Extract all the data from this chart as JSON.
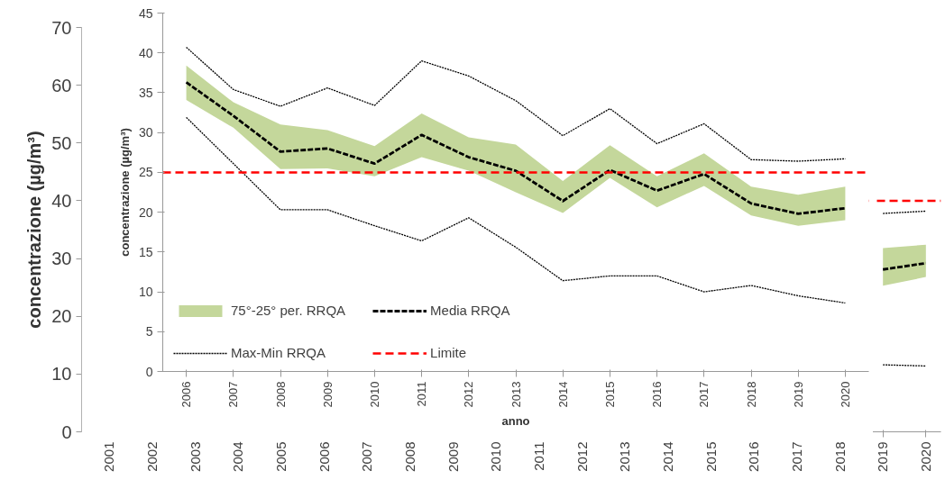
{
  "chart_data": [
    {
      "type": "line",
      "ylabel": "concentrazione (µg/m³)",
      "categories": [
        "2001",
        "2002",
        "2003",
        "2004",
        "2005",
        "2006",
        "2007",
        "2008",
        "2009",
        "2010",
        "2011",
        "2012",
        "2013",
        "2014",
        "2015",
        "2016",
        "2017",
        "2018",
        "2019",
        "2020"
      ],
      "ylim": [
        0,
        70
      ],
      "yticks": [
        0,
        10,
        20,
        30,
        40,
        50,
        60,
        70
      ],
      "grid": false,
      "legend": false,
      "series": [
        {
          "color": "#c4d79b",
          "values": [
            null,
            null,
            null,
            null,
            null,
            null,
            null,
            null,
            null,
            null,
            null,
            null,
            null,
            null,
            null,
            null,
            null,
            null,
            null,
            null
          ],
          "lower": [
            null,
            null,
            null,
            null,
            null,
            null,
            null,
            null,
            null,
            null,
            null,
            null,
            null,
            null,
            null,
            null,
            null,
            null,
            25.3,
            26.8
          ],
          "upper": [
            null,
            null,
            null,
            null,
            null,
            null,
            null,
            null,
            null,
            null,
            null,
            null,
            null,
            null,
            null,
            null,
            null,
            null,
            31.8,
            32.4
          ]
        },
        {
          "color": "#000000",
          "line_style": "dashed",
          "values": [
            null,
            null,
            null,
            null,
            null,
            null,
            null,
            null,
            null,
            null,
            null,
            null,
            null,
            null,
            null,
            null,
            null,
            null,
            28.1,
            29.2
          ]
        },
        {
          "color": "#000000",
          "line_style": "dotted",
          "values": [
            null,
            null,
            null,
            null,
            null,
            null,
            null,
            null,
            null,
            null,
            null,
            null,
            null,
            null,
            null,
            null,
            null,
            null,
            37.8,
            38.2
          ]
        },
        {
          "color": "#000000",
          "line_style": "dotted",
          "values": [
            null,
            null,
            null,
            null,
            null,
            null,
            null,
            null,
            null,
            null,
            null,
            null,
            null,
            null,
            null,
            null,
            null,
            null,
            11.6,
            11.4
          ]
        }
      ],
      "ref_lines": [
        {
          "axis": "y",
          "value": 40,
          "color": "#ff0000",
          "line_style": "dashed"
        }
      ]
    },
    {
      "type": "line",
      "ylabel": "concentrazione (µg/m³)",
      "xlabel": "anno",
      "categories": [
        "2006",
        "2007",
        "2008",
        "2009",
        "2010",
        "2011",
        "2012",
        "2013",
        "2014",
        "2015",
        "2016",
        "2017",
        "2018",
        "2019",
        "2020"
      ],
      "ylim": [
        0,
        45
      ],
      "yticks": [
        0,
        5,
        10,
        15,
        20,
        25,
        30,
        35,
        40,
        45
      ],
      "grid": false,
      "legend": "bottom left",
      "series": [
        {
          "name": "75°-25° per. RRQA",
          "color": "#c4d79b",
          "values": [
            null,
            null,
            null,
            null,
            null,
            null,
            null,
            null,
            null,
            null,
            null,
            null,
            null,
            null,
            null
          ],
          "lower": [
            34.1,
            30.6,
            25.4,
            25.5,
            24.5,
            26.9,
            25.2,
            22.5,
            19.9,
            24.3,
            20.6,
            23.3,
            19.6,
            18.3,
            19.0
          ],
          "upper": [
            38.4,
            33.8,
            31.0,
            30.3,
            28.3,
            32.4,
            29.4,
            28.5,
            23.9,
            28.4,
            24.5,
            27.4,
            23.2,
            22.2,
            23.2
          ]
        },
        {
          "name": "Max-Min RRQA",
          "color": "#000000",
          "line_style": "dotted",
          "values": [
            40.7,
            35.4,
            33.3,
            35.6,
            33.4,
            39.0,
            37.1,
            34.0,
            29.6,
            33.0,
            28.6,
            31.1,
            26.6,
            26.4,
            26.7
          ]
        },
        {
          "color": "#000000",
          "line_style": "dotted",
          "values": [
            31.9,
            26.1,
            20.3,
            20.3,
            18.3,
            16.4,
            19.3,
            15.6,
            11.4,
            12.0,
            12.0,
            10.0,
            10.8,
            9.5,
            8.6
          ]
        },
        {
          "name": "Media RRQA",
          "color": "#000000",
          "line_style": "dashed",
          "values": [
            36.3,
            32.1,
            27.6,
            28.0,
            26.1,
            29.7,
            26.9,
            25.2,
            21.4,
            25.3,
            22.7,
            24.8,
            21.1,
            19.8,
            20.5
          ]
        }
      ],
      "ref_lines": [
        {
          "axis": "y",
          "value": 25,
          "label": "Limite",
          "color": "#ff0000",
          "line_style": "dashed"
        }
      ]
    }
  ]
}
